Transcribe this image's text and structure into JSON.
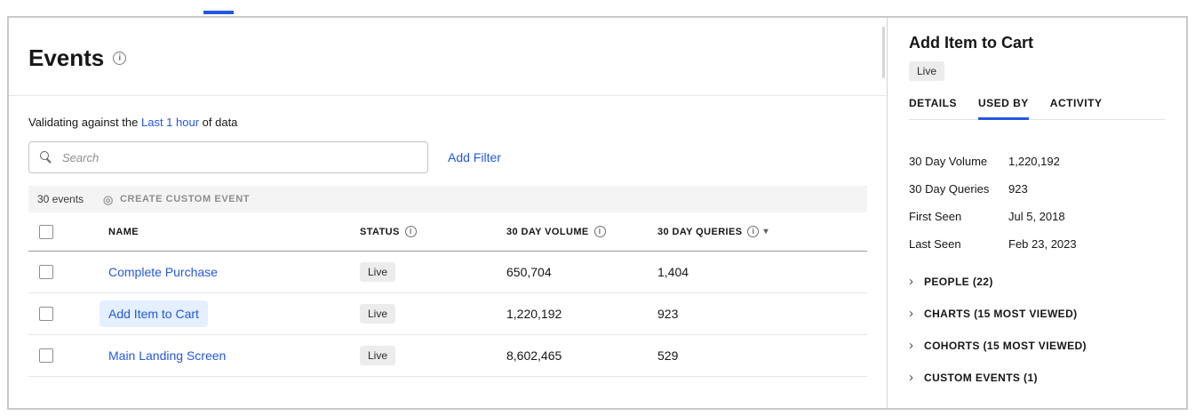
{
  "icons": {
    "info": "i",
    "sort_desc": "▾",
    "chevron_right": "›",
    "create_custom_event": "◎"
  },
  "colors": {
    "accent": "#2458e0",
    "selected_row_bg": "#e4efff",
    "badge_bg": "#ececec",
    "toolbar_bg": "#f4f4f4"
  },
  "page": {
    "title": "Events"
  },
  "validation": {
    "prefix": "Validating against the",
    "link_label": "Last 1 hour",
    "suffix": "of data"
  },
  "search": {
    "placeholder": "Search"
  },
  "filters": {
    "add_filter_label": "Add Filter"
  },
  "toolbar": {
    "count_label": "30 events",
    "create_custom_event_label": "CREATE CUSTOM EVENT"
  },
  "table": {
    "columns": [
      {
        "label": "NAME"
      },
      {
        "label": "STATUS",
        "has_info": true
      },
      {
        "label": "30 DAY VOLUME",
        "has_info": true
      },
      {
        "label": "30 DAY QUERIES",
        "has_info": true,
        "sorted": "desc"
      }
    ],
    "rows": [
      {
        "name": "Complete Purchase",
        "status": "Live",
        "volume": "650,704",
        "queries": "1,404",
        "selected": false
      },
      {
        "name": "Add Item to Cart",
        "status": "Live",
        "volume": "1,220,192",
        "queries": "923",
        "selected": true
      },
      {
        "name": "Main Landing Screen",
        "status": "Live",
        "volume": "8,602,465",
        "queries": "529",
        "selected": false
      }
    ]
  },
  "detail_panel": {
    "title": "Add Item to Cart",
    "status_badge": "Live",
    "tabs": [
      {
        "label": "DETAILS",
        "active": false
      },
      {
        "label": "USED BY",
        "active": true
      },
      {
        "label": "ACTIVITY",
        "active": false
      }
    ],
    "stats": [
      {
        "label": "30 Day Volume",
        "value": "1,220,192"
      },
      {
        "label": "30 Day Queries",
        "value": "923"
      },
      {
        "label": "First Seen",
        "value": "Jul 5, 2018"
      },
      {
        "label": "Last Seen",
        "value": "Feb 23, 2023"
      }
    ],
    "sections": [
      {
        "label": "PEOPLE (22)"
      },
      {
        "label": "CHARTS (15 MOST VIEWED)"
      },
      {
        "label": "COHORTS (15 MOST VIEWED)"
      },
      {
        "label": "CUSTOM EVENTS (1)"
      }
    ]
  }
}
